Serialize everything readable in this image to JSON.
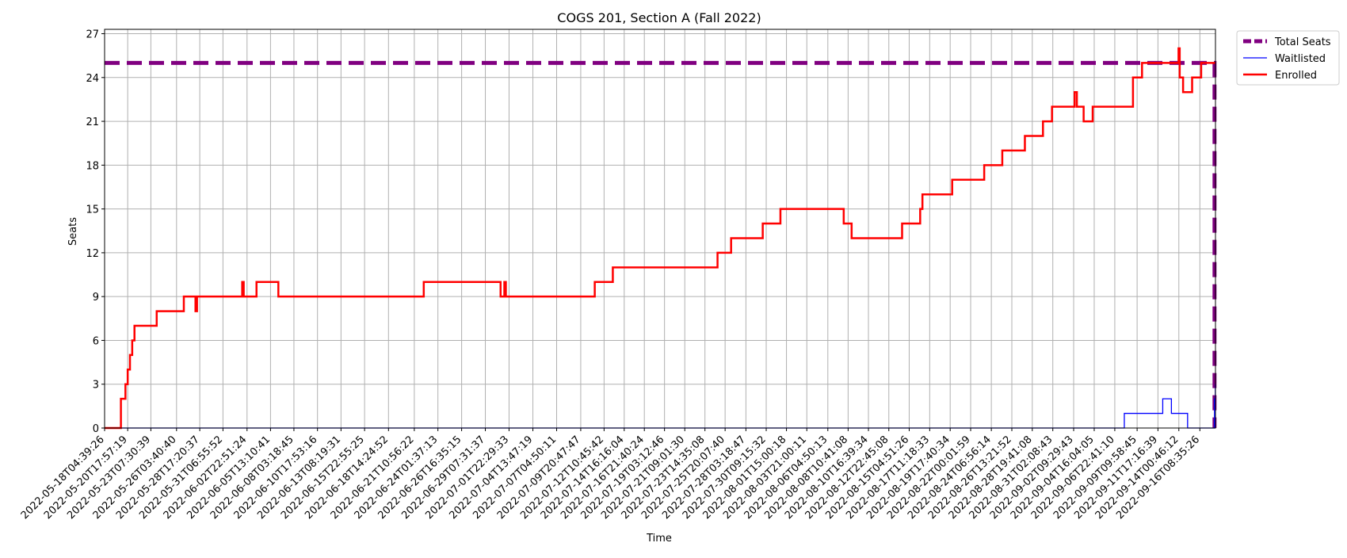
{
  "chart_data": {
    "type": "line",
    "title": "COGS 201, Section A (Fall 2022)",
    "xlabel": "Time",
    "ylabel": "Seats",
    "ylim": [
      0,
      27.3
    ],
    "xlim": [
      "2022-05-18T04:39:26",
      "2022-09-18T02:00:00"
    ],
    "yticks": [
      0,
      3,
      6,
      9,
      12,
      15,
      18,
      21,
      24,
      27
    ],
    "xtick_labels": [
      "2022-05-18T04:39:26",
      "2022-05-20T17:57:19",
      "2022-05-23T07:30:39",
      "2022-05-26T03:40:40",
      "2022-05-28T17:20:37",
      "2022-05-31T06:55:52",
      "2022-06-02T22:51:24",
      "2022-06-05T13:10:41",
      "2022-06-08T03:18:45",
      "2022-06-10T17:53:16",
      "2022-06-13T08:19:31",
      "2022-06-15T22:55:25",
      "2022-06-18T14:24:52",
      "2022-06-21T10:56:22",
      "2022-06-24T01:37:13",
      "2022-06-26T16:35:15",
      "2022-06-29T07:31:37",
      "2022-07-01T22:29:33",
      "2022-07-04T13:47:19",
      "2022-07-07T04:50:11",
      "2022-07-09T20:47:47",
      "2022-07-12T10:45:42",
      "2022-07-14T16:16:04",
      "2022-07-16T21:40:24",
      "2022-07-19T03:12:46",
      "2022-07-21T09:01:30",
      "2022-07-23T14:35:08",
      "2022-07-25T20:07:40",
      "2022-07-28T03:18:47",
      "2022-07-30T09:15:32",
      "2022-08-01T15:00:18",
      "2022-08-03T21:00:11",
      "2022-08-06T04:50:13",
      "2022-08-08T10:41:08",
      "2022-08-10T16:39:34",
      "2022-08-12T22:45:08",
      "2022-08-15T04:51:26",
      "2022-08-17T11:18:33",
      "2022-08-19T17:40:34",
      "2022-08-22T00:01:59",
      "2022-08-24T06:56:14",
      "2022-08-26T13:21:52",
      "2022-08-28T19:41:08",
      "2022-08-31T02:08:43",
      "2022-09-02T09:29:43",
      "2022-09-04T16:04:05",
      "2022-09-06T22:41:10",
      "2022-09-09T09:58:45",
      "2022-09-11T17:16:39",
      "2022-09-14T00:46:12",
      "2022-09-16T08:35:26"
    ],
    "grid": true,
    "legend_position": "outside-top-right",
    "series": [
      {
        "name": "Total Seats",
        "color": "#800080",
        "style": "dashed",
        "points": [
          [
            "2022-05-18T04:39:26",
            25
          ],
          [
            "2022-09-17T23:30:00",
            25
          ],
          [
            "2022-09-17T23:30:00",
            0
          ]
        ]
      },
      {
        "name": "Waitlisted",
        "color": "#0000ff",
        "style": "solid",
        "points": [
          [
            "2022-05-18T04:39:26",
            0
          ],
          [
            "2022-09-08T00:00:00",
            0
          ],
          [
            "2022-09-08T00:00:00",
            1
          ],
          [
            "2022-09-12T06:00:00",
            1
          ],
          [
            "2022-09-12T06:00:00",
            2
          ],
          [
            "2022-09-13T05:00:00",
            2
          ],
          [
            "2022-09-13T05:00:00",
            1
          ],
          [
            "2022-09-15T00:00:00",
            1
          ],
          [
            "2022-09-15T00:00:00",
            0
          ],
          [
            "2022-09-17T23:30:00",
            0
          ],
          [
            "2022-09-17T23:30:00",
            2
          ],
          [
            "2022-09-18T01:40:00",
            2
          ],
          [
            "2022-09-18T01:40:00",
            3
          ]
        ]
      },
      {
        "name": "Enrolled",
        "color": "#ff0000",
        "style": "solid",
        "points": [
          [
            "2022-05-18T04:39:26",
            0
          ],
          [
            "2022-05-20T00:00:00",
            0
          ],
          [
            "2022-05-20T00:00:00",
            2
          ],
          [
            "2022-05-20T12:00:00",
            2
          ],
          [
            "2022-05-20T12:00:00",
            3
          ],
          [
            "2022-05-20T18:00:00",
            3
          ],
          [
            "2022-05-20T18:00:00",
            4
          ],
          [
            "2022-05-21T00:00:00",
            4
          ],
          [
            "2022-05-21T00:00:00",
            5
          ],
          [
            "2022-05-21T06:00:00",
            5
          ],
          [
            "2022-05-21T06:00:00",
            6
          ],
          [
            "2022-05-21T12:00:00",
            6
          ],
          [
            "2022-05-21T12:00:00",
            7
          ],
          [
            "2022-05-23T23:00:00",
            7
          ],
          [
            "2022-05-23T23:00:00",
            8
          ],
          [
            "2022-05-26T23:00:00",
            8
          ],
          [
            "2022-05-26T23:00:00",
            9
          ],
          [
            "2022-05-28T06:00:00",
            9
          ],
          [
            "2022-05-28T06:00:00",
            8
          ],
          [
            "2022-05-28T10:00:00",
            8
          ],
          [
            "2022-05-28T10:00:00",
            9
          ],
          [
            "2022-06-02T10:00:00",
            9
          ],
          [
            "2022-06-02T10:00:00",
            10
          ],
          [
            "2022-06-02T14:00:00",
            10
          ],
          [
            "2022-06-02T14:00:00",
            9
          ],
          [
            "2022-06-04T00:00:00",
            9
          ],
          [
            "2022-06-04T00:00:00",
            10
          ],
          [
            "2022-06-06T10:00:00",
            10
          ],
          [
            "2022-06-06T10:00:00",
            9
          ],
          [
            "2022-06-22T12:00:00",
            9
          ],
          [
            "2022-06-22T12:00:00",
            10
          ],
          [
            "2022-07-01T00:00:00",
            10
          ],
          [
            "2022-07-01T00:00:00",
            9
          ],
          [
            "2022-07-01T10:00:00",
            9
          ],
          [
            "2022-07-01T10:00:00",
            10
          ],
          [
            "2022-07-01T14:00:00",
            10
          ],
          [
            "2022-07-01T14:00:00",
            9
          ],
          [
            "2022-07-11T10:00:00",
            9
          ],
          [
            "2022-07-11T10:00:00",
            10
          ],
          [
            "2022-07-13T10:00:00",
            10
          ],
          [
            "2022-07-13T10:00:00",
            11
          ],
          [
            "2022-07-25T00:00:00",
            11
          ],
          [
            "2022-07-25T00:00:00",
            12
          ],
          [
            "2022-07-26T12:00:00",
            12
          ],
          [
            "2022-07-26T12:00:00",
            13
          ],
          [
            "2022-07-30T00:00:00",
            13
          ],
          [
            "2022-07-30T00:00:00",
            14
          ],
          [
            "2022-07-31T23:00:00",
            14
          ],
          [
            "2022-07-31T23:00:00",
            15
          ],
          [
            "2022-08-07T23:00:00",
            15
          ],
          [
            "2022-08-07T23:00:00",
            14
          ],
          [
            "2022-08-08T20:00:00",
            14
          ],
          [
            "2022-08-08T20:00:00",
            13
          ],
          [
            "2022-08-14T10:00:00",
            13
          ],
          [
            "2022-08-14T10:00:00",
            14
          ],
          [
            "2022-08-16T10:00:00",
            14
          ],
          [
            "2022-08-16T10:00:00",
            15
          ],
          [
            "2022-08-16T16:00:00",
            15
          ],
          [
            "2022-08-16T16:00:00",
            16
          ],
          [
            "2022-08-19T23:00:00",
            16
          ],
          [
            "2022-08-19T23:00:00",
            17
          ],
          [
            "2022-08-23T12:00:00",
            17
          ],
          [
            "2022-08-23T12:00:00",
            18
          ],
          [
            "2022-08-25T12:00:00",
            18
          ],
          [
            "2022-08-25T12:00:00",
            19
          ],
          [
            "2022-08-28T00:00:00",
            19
          ],
          [
            "2022-08-28T00:00:00",
            20
          ],
          [
            "2022-08-30T00:00:00",
            20
          ],
          [
            "2022-08-30T00:00:00",
            21
          ],
          [
            "2022-08-31T00:00:00",
            21
          ],
          [
            "2022-08-31T00:00:00",
            22
          ],
          [
            "2022-09-02T12:00:00",
            22
          ],
          [
            "2022-09-02T12:00:00",
            23
          ],
          [
            "2022-09-02T18:00:00",
            23
          ],
          [
            "2022-09-02T18:00:00",
            22
          ],
          [
            "2022-09-03T12:00:00",
            22
          ],
          [
            "2022-09-03T12:00:00",
            21
          ],
          [
            "2022-09-04T12:00:00",
            21
          ],
          [
            "2022-09-04T12:00:00",
            22
          ],
          [
            "2022-09-08T23:00:00",
            22
          ],
          [
            "2022-09-08T23:00:00",
            24
          ],
          [
            "2022-09-09T23:00:00",
            24
          ],
          [
            "2022-09-09T23:00:00",
            25
          ],
          [
            "2022-09-14T00:00:00",
            25
          ],
          [
            "2022-09-14T00:00:00",
            26
          ],
          [
            "2022-09-14T03:00:00",
            26
          ],
          [
            "2022-09-14T03:00:00",
            24
          ],
          [
            "2022-09-14T12:00:00",
            24
          ],
          [
            "2022-09-14T12:00:00",
            23
          ],
          [
            "2022-09-15T12:00:00",
            23
          ],
          [
            "2022-09-15T12:00:00",
            24
          ],
          [
            "2022-09-16T12:00:00",
            24
          ],
          [
            "2022-09-16T12:00:00",
            25
          ],
          [
            "2022-09-18T02:00:00",
            25
          ]
        ]
      }
    ]
  }
}
